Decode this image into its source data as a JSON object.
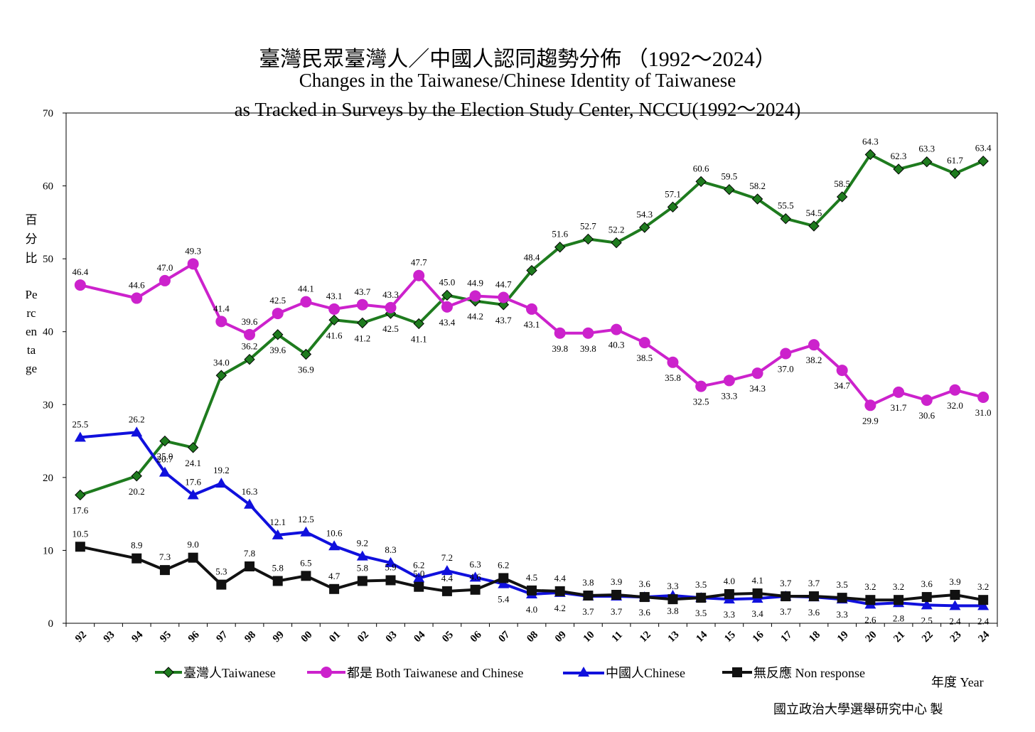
{
  "header": {
    "title_cn": "臺灣民眾臺灣人／中國人認同趨勢分佈 （1992～2024）",
    "title_en_line1": "Changes in the Taiwanese/Chinese Identity of Taiwanese",
    "title_en_line2": "as Tracked in Surveys by the Election Study Center, NCCU(1992～2024)"
  },
  "ylabel_cn": "百分比",
  "ylabel_en": "Percentage",
  "xlabel": "年度 Year",
  "source": "國立政治大學選舉研究中心 製",
  "chart_data": {
    "type": "line",
    "x": [
      "92",
      "93",
      "94",
      "95",
      "96",
      "97",
      "98",
      "99",
      "00",
      "01",
      "02",
      "03",
      "04",
      "05",
      "06",
      "07",
      "08",
      "09",
      "10",
      "11",
      "12",
      "13",
      "14",
      "15",
      "16",
      "17",
      "18",
      "19",
      "20",
      "21",
      "22",
      "23",
      "24"
    ],
    "ylim": [
      0,
      70
    ],
    "yticks": [
      0,
      10,
      20,
      30,
      40,
      50,
      60,
      70
    ],
    "grid": false,
    "legend": "bottom",
    "series": [
      {
        "name": "臺灣人Taiwanese",
        "color": "#1e7b1e",
        "marker": "diamond",
        "values": [
          17.6,
          null,
          20.2,
          25.0,
          24.1,
          34.0,
          36.2,
          39.6,
          36.9,
          41.6,
          41.2,
          42.5,
          41.1,
          45.0,
          44.2,
          43.7,
          48.4,
          51.6,
          52.7,
          52.2,
          54.3,
          57.1,
          60.6,
          59.5,
          58.2,
          55.5,
          54.5,
          58.5,
          64.3,
          62.3,
          63.3,
          61.7,
          63.4
        ]
      },
      {
        "name": "都是 Both Taiwanese and Chinese",
        "color": "#cc22cc",
        "marker": "circle",
        "values": [
          46.4,
          null,
          44.6,
          47.0,
          49.3,
          41.4,
          39.6,
          42.5,
          44.1,
          43.1,
          43.7,
          43.3,
          47.7,
          43.4,
          44.9,
          44.7,
          43.1,
          39.8,
          39.8,
          40.3,
          38.5,
          35.8,
          32.5,
          33.3,
          34.3,
          37.0,
          38.2,
          34.7,
          29.9,
          31.7,
          30.6,
          32.0,
          31.0
        ]
      },
      {
        "name": "中國人Chinese",
        "color": "#1010dd",
        "marker": "triangle",
        "values": [
          25.5,
          null,
          26.2,
          20.7,
          17.6,
          19.2,
          16.3,
          12.1,
          12.5,
          10.6,
          9.2,
          8.3,
          6.2,
          7.2,
          6.3,
          5.4,
          4.0,
          4.2,
          3.7,
          3.7,
          3.6,
          3.8,
          3.5,
          3.3,
          3.4,
          3.7,
          3.6,
          3.3,
          2.6,
          2.8,
          2.5,
          2.4,
          2.4
        ]
      },
      {
        "name": "無反應 Non response",
        "color": "#111111",
        "marker": "square",
        "values": [
          10.5,
          null,
          8.9,
          7.3,
          9.0,
          5.3,
          7.8,
          5.8,
          6.5,
          4.7,
          5.8,
          5.9,
          5.0,
          4.4,
          4.6,
          6.2,
          4.5,
          4.4,
          3.8,
          3.9,
          3.6,
          3.3,
          3.5,
          4.0,
          4.1,
          3.7,
          3.7,
          3.5,
          3.2,
          3.2,
          3.6,
          3.9,
          3.2
        ]
      }
    ]
  }
}
